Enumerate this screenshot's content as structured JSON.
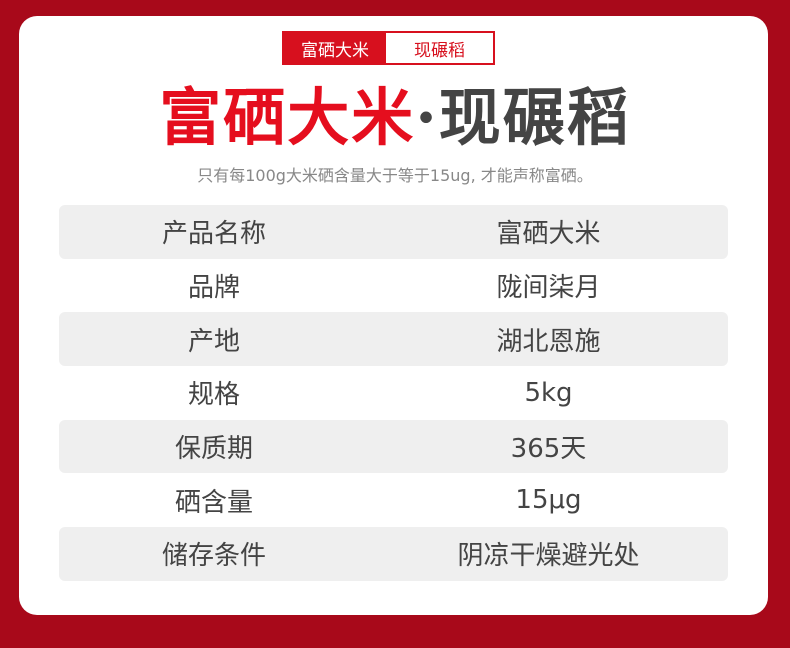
{
  "tag": {
    "left": "富硒大米",
    "right": "现碾稻"
  },
  "title": {
    "red": "富硒大米",
    "dot": "·",
    "gray": "现碾稻"
  },
  "subtitle": "只有每100g大米硒含量大于等于15ug, 才能声称富硒。",
  "rows": [
    {
      "label": "产品名称",
      "value": "富硒大米"
    },
    {
      "label": "品牌",
      "value": "陇间柒月"
    },
    {
      "label": "产地",
      "value": "湖北恩施"
    },
    {
      "label": "规格",
      "value": "5kg"
    },
    {
      "label": "保质期",
      "value": "365天"
    },
    {
      "label": "硒含量",
      "value": "15μg"
    },
    {
      "label": "储存条件",
      "value": "阴凉干燥避光处"
    }
  ],
  "colors": {
    "background": "#a8091a",
    "accent": "#d7101e"
  }
}
